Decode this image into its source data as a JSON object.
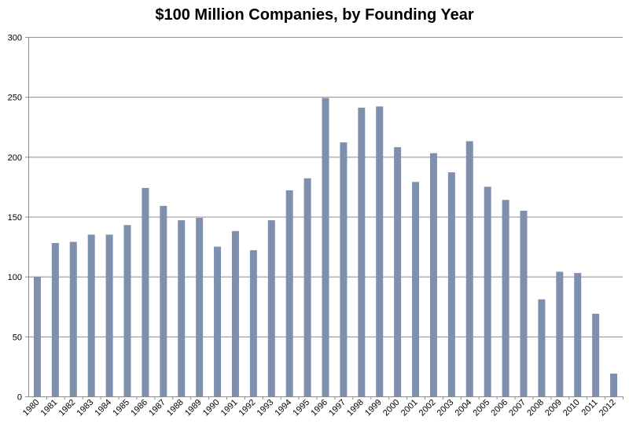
{
  "chart_data": {
    "type": "bar",
    "title": "$100 Million Companies, by Founding Year",
    "xlabel": "",
    "ylabel": "",
    "ylim": [
      0,
      300
    ],
    "yticks": [
      0,
      50,
      100,
      150,
      200,
      250,
      300
    ],
    "grid": true,
    "legend": "none",
    "bar_color": "#7f8fae",
    "categories": [
      "1980",
      "1981",
      "1982",
      "1983",
      "1984",
      "1985",
      "1986",
      "1987",
      "1988",
      "1989",
      "1990",
      "1991",
      "1992",
      "1993",
      "1994",
      "1995",
      "1996",
      "1997",
      "1998",
      "1999",
      "2000",
      "2001",
      "2002",
      "2003",
      "2004",
      "2005",
      "2006",
      "2007",
      "2008",
      "2009",
      "2010",
      "2011",
      "2012"
    ],
    "values": [
      100,
      128,
      129,
      135,
      135,
      143,
      174,
      159,
      147,
      149,
      125,
      138,
      122,
      147,
      172,
      182,
      249,
      212,
      241,
      242,
      208,
      179,
      203,
      187,
      213,
      175,
      164,
      155,
      81,
      104,
      103,
      69,
      19
    ]
  }
}
